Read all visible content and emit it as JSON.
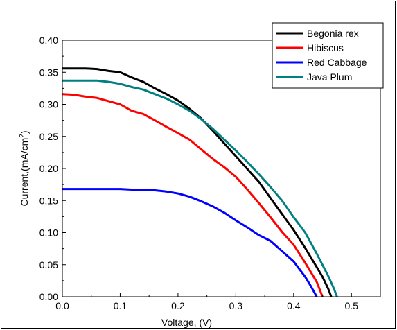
{
  "chart_data": {
    "type": "line",
    "title": "",
    "xlabel": "Voltage, (V)",
    "ylabel_main": "Current,(mA/cm",
    "ylabel_sup": "2",
    "ylabel_close": ")",
    "xlim": [
      0.0,
      0.55
    ],
    "ylim": [
      0.0,
      0.4
    ],
    "x_ticks": [
      0.0,
      0.1,
      0.2,
      0.3,
      0.4,
      0.5
    ],
    "x_tick_labels": [
      "0.0",
      "0.1",
      "0.2",
      "0.3",
      "0.4",
      "0.5"
    ],
    "y_ticks": [
      0.0,
      0.05,
      0.1,
      0.15,
      0.2,
      0.25,
      0.3,
      0.35,
      0.4
    ],
    "y_tick_labels": [
      "0.00",
      "0.05",
      "0.10",
      "0.15",
      "0.20",
      "0.25",
      "0.30",
      "0.35",
      "0.40"
    ],
    "grid": false,
    "legend_position": "top-right",
    "series": [
      {
        "name": "Begonia rex",
        "color": "#000000",
        "x": [
          0.0,
          0.02,
          0.04,
          0.06,
          0.08,
          0.1,
          0.12,
          0.14,
          0.16,
          0.18,
          0.2,
          0.22,
          0.24,
          0.26,
          0.28,
          0.3,
          0.32,
          0.34,
          0.36,
          0.38,
          0.4,
          0.42,
          0.44,
          0.45,
          0.46,
          0.465
        ],
        "y": [
          0.356,
          0.356,
          0.356,
          0.355,
          0.352,
          0.35,
          0.342,
          0.335,
          0.325,
          0.316,
          0.306,
          0.293,
          0.278,
          0.259,
          0.239,
          0.219,
          0.199,
          0.179,
          0.154,
          0.129,
          0.104,
          0.076,
          0.046,
          0.031,
          0.012,
          0.0
        ]
      },
      {
        "name": "Hibiscus",
        "color": "#ff0000",
        "x": [
          0.0,
          0.02,
          0.04,
          0.06,
          0.08,
          0.1,
          0.12,
          0.14,
          0.16,
          0.18,
          0.2,
          0.22,
          0.24,
          0.26,
          0.28,
          0.3,
          0.32,
          0.34,
          0.36,
          0.38,
          0.4,
          0.42,
          0.44,
          0.45
        ],
        "y": [
          0.316,
          0.315,
          0.312,
          0.31,
          0.305,
          0.3,
          0.29,
          0.285,
          0.275,
          0.265,
          0.255,
          0.245,
          0.23,
          0.215,
          0.202,
          0.187,
          0.167,
          0.146,
          0.124,
          0.101,
          0.081,
          0.053,
          0.023,
          0.0
        ]
      },
      {
        "name": "Red Cabbage",
        "color": "#0000ff",
        "x": [
          0.0,
          0.02,
          0.04,
          0.06,
          0.08,
          0.1,
          0.12,
          0.14,
          0.16,
          0.18,
          0.2,
          0.22,
          0.24,
          0.26,
          0.28,
          0.3,
          0.32,
          0.34,
          0.36,
          0.38,
          0.4,
          0.42,
          0.43,
          0.44
        ],
        "y": [
          0.168,
          0.168,
          0.168,
          0.168,
          0.168,
          0.168,
          0.167,
          0.167,
          0.166,
          0.164,
          0.161,
          0.156,
          0.149,
          0.141,
          0.131,
          0.119,
          0.108,
          0.096,
          0.087,
          0.071,
          0.055,
          0.031,
          0.016,
          0.0
        ]
      },
      {
        "name": "Java Plum",
        "color": "#008080",
        "x": [
          0.0,
          0.02,
          0.04,
          0.06,
          0.08,
          0.1,
          0.12,
          0.14,
          0.16,
          0.18,
          0.2,
          0.22,
          0.24,
          0.26,
          0.28,
          0.3,
          0.32,
          0.34,
          0.36,
          0.38,
          0.4,
          0.42,
          0.44,
          0.46,
          0.47,
          0.475
        ],
        "y": [
          0.337,
          0.337,
          0.337,
          0.337,
          0.335,
          0.332,
          0.327,
          0.323,
          0.316,
          0.309,
          0.3,
          0.29,
          0.277,
          0.262,
          0.245,
          0.228,
          0.21,
          0.191,
          0.171,
          0.15,
          0.124,
          0.1,
          0.067,
          0.032,
          0.012,
          0.0
        ]
      }
    ]
  }
}
